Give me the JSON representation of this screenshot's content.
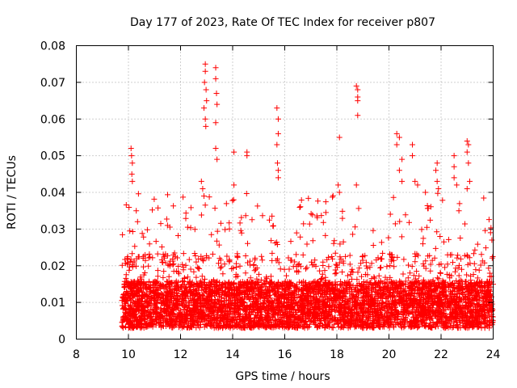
{
  "chart_data": {
    "type": "scatter",
    "title": "Day 177 of 2023, Rate Of TEC Index for receiver p807",
    "xlabel": "GPS time / hours",
    "ylabel": "ROTI / TECUs",
    "xlim": [
      8,
      24
    ],
    "ylim": [
      0,
      0.08
    ],
    "x_ticks": [
      8,
      10,
      12,
      14,
      16,
      18,
      20,
      22,
      24
    ],
    "y_ticks": [
      0,
      0.01,
      0.02,
      0.03,
      0.04,
      0.05,
      0.06,
      0.07,
      0.08
    ],
    "x_tick_labels": [
      "8",
      "10",
      "12",
      "14",
      "16",
      "18",
      "20",
      "22",
      "24"
    ],
    "y_tick_labels": [
      "0",
      "0.01",
      "0.02",
      "0.03",
      "0.04",
      "0.05",
      "0.06",
      "0.07",
      "0.08"
    ],
    "grid": true,
    "marker": "plus",
    "color": "#ff0000",
    "series": [
      {
        "name": "ROTI",
        "x_range": [
          9.75,
          24
        ],
        "base_band": [
          0.003,
          0.02
        ],
        "peaks": [
          {
            "x": 10.1,
            "y": 0.052
          },
          {
            "x": 10.12,
            "y": 0.05
          },
          {
            "x": 10.15,
            "y": 0.048
          },
          {
            "x": 10.13,
            "y": 0.045
          },
          {
            "x": 10.15,
            "y": 0.043
          },
          {
            "x": 10.3,
            "y": 0.035
          },
          {
            "x": 10.35,
            "y": 0.032
          },
          {
            "x": 11.5,
            "y": 0.031
          },
          {
            "x": 12.8,
            "y": 0.043
          },
          {
            "x": 12.85,
            "y": 0.041
          },
          {
            "x": 12.9,
            "y": 0.039
          },
          {
            "x": 12.95,
            "y": 0.075
          },
          {
            "x": 12.95,
            "y": 0.073
          },
          {
            "x": 12.92,
            "y": 0.07
          },
          {
            "x": 12.98,
            "y": 0.068
          },
          {
            "x": 13.0,
            "y": 0.065
          },
          {
            "x": 12.9,
            "y": 0.063
          },
          {
            "x": 12.95,
            "y": 0.06
          },
          {
            "x": 12.97,
            "y": 0.058
          },
          {
            "x": 13.35,
            "y": 0.074
          },
          {
            "x": 13.35,
            "y": 0.071
          },
          {
            "x": 13.38,
            "y": 0.067
          },
          {
            "x": 13.4,
            "y": 0.064
          },
          {
            "x": 13.35,
            "y": 0.059
          },
          {
            "x": 13.35,
            "y": 0.052
          },
          {
            "x": 13.4,
            "y": 0.049
          },
          {
            "x": 14.05,
            "y": 0.051
          },
          {
            "x": 14.05,
            "y": 0.042
          },
          {
            "x": 14.55,
            "y": 0.051
          },
          {
            "x": 14.55,
            "y": 0.05
          },
          {
            "x": 15.7,
            "y": 0.063
          },
          {
            "x": 15.75,
            "y": 0.06
          },
          {
            "x": 15.75,
            "y": 0.056
          },
          {
            "x": 15.7,
            "y": 0.053
          },
          {
            "x": 15.72,
            "y": 0.048
          },
          {
            "x": 15.75,
            "y": 0.046
          },
          {
            "x": 15.75,
            "y": 0.044
          },
          {
            "x": 18.1,
            "y": 0.055
          },
          {
            "x": 18.05,
            "y": 0.042
          },
          {
            "x": 18.1,
            "y": 0.04
          },
          {
            "x": 18.75,
            "y": 0.069
          },
          {
            "x": 18.8,
            "y": 0.068
          },
          {
            "x": 18.8,
            "y": 0.066
          },
          {
            "x": 18.8,
            "y": 0.065
          },
          {
            "x": 18.8,
            "y": 0.061
          },
          {
            "x": 18.75,
            "y": 0.042
          },
          {
            "x": 20.3,
            "y": 0.056
          },
          {
            "x": 20.4,
            "y": 0.055
          },
          {
            "x": 20.3,
            "y": 0.053
          },
          {
            "x": 20.5,
            "y": 0.049
          },
          {
            "x": 20.4,
            "y": 0.046
          },
          {
            "x": 20.5,
            "y": 0.043
          },
          {
            "x": 20.9,
            "y": 0.053
          },
          {
            "x": 20.9,
            "y": 0.05
          },
          {
            "x": 21.0,
            "y": 0.043
          },
          {
            "x": 21.1,
            "y": 0.042
          },
          {
            "x": 21.4,
            "y": 0.04
          },
          {
            "x": 21.85,
            "y": 0.048
          },
          {
            "x": 21.8,
            "y": 0.046
          },
          {
            "x": 21.85,
            "y": 0.043
          },
          {
            "x": 21.9,
            "y": 0.041
          },
          {
            "x": 22.5,
            "y": 0.05
          },
          {
            "x": 22.5,
            "y": 0.047
          },
          {
            "x": 22.5,
            "y": 0.044
          },
          {
            "x": 22.6,
            "y": 0.042
          },
          {
            "x": 23.0,
            "y": 0.054
          },
          {
            "x": 23.05,
            "y": 0.053
          },
          {
            "x": 23.0,
            "y": 0.051
          },
          {
            "x": 23.05,
            "y": 0.048
          },
          {
            "x": 23.1,
            "y": 0.043
          },
          {
            "x": 23.0,
            "y": 0.041
          },
          {
            "x": 23.9,
            "y": 0.029
          },
          {
            "x": 23.95,
            "y": 0.027
          }
        ]
      }
    ]
  }
}
